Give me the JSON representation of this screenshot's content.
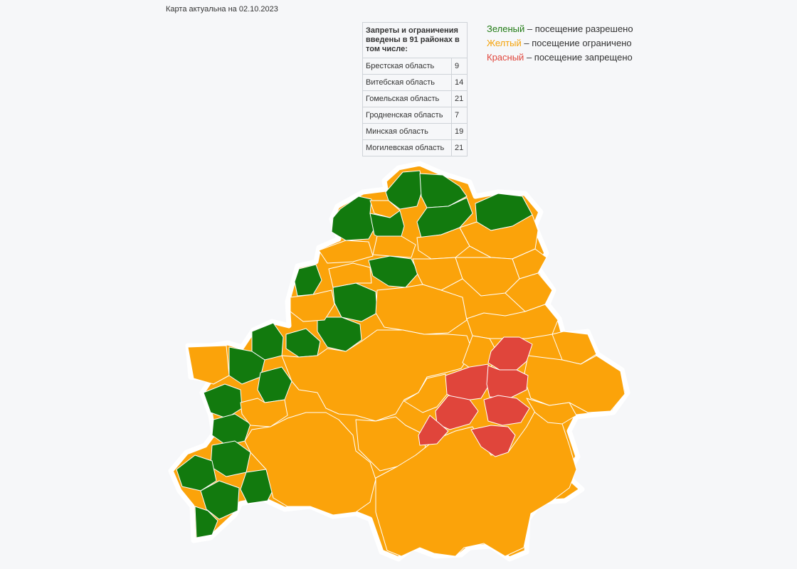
{
  "header": {
    "map_date_note": "Карта актуальна на 02.10.2023"
  },
  "stats_table": {
    "title": "Запреты и ограничения введены в 91 районах в том числе:",
    "rows": [
      {
        "region": "Брестская область",
        "count": "9"
      },
      {
        "region": "Витебская область",
        "count": "14"
      },
      {
        "region": "Гомельская область",
        "count": "21"
      },
      {
        "region": "Гродненская область",
        "count": "7"
      },
      {
        "region": "Минская область",
        "count": "19"
      },
      {
        "region": "Могилевская область",
        "count": "21"
      }
    ]
  },
  "legend": {
    "items": [
      {
        "color_word": "Зеленый",
        "text": " – посещение разрешено",
        "color": "#1f7a12"
      },
      {
        "color_word": "Желтый",
        "text": " – посещение ограничено",
        "color": "#f5a30a"
      },
      {
        "color_word": "Красный",
        "text": " – посещение запрещено",
        "color": "#e0453b"
      }
    ]
  },
  "map_colors": {
    "green": "#127a0e",
    "yellow": "#fba30a",
    "red": "#e0453b",
    "border": "#ffffff"
  }
}
